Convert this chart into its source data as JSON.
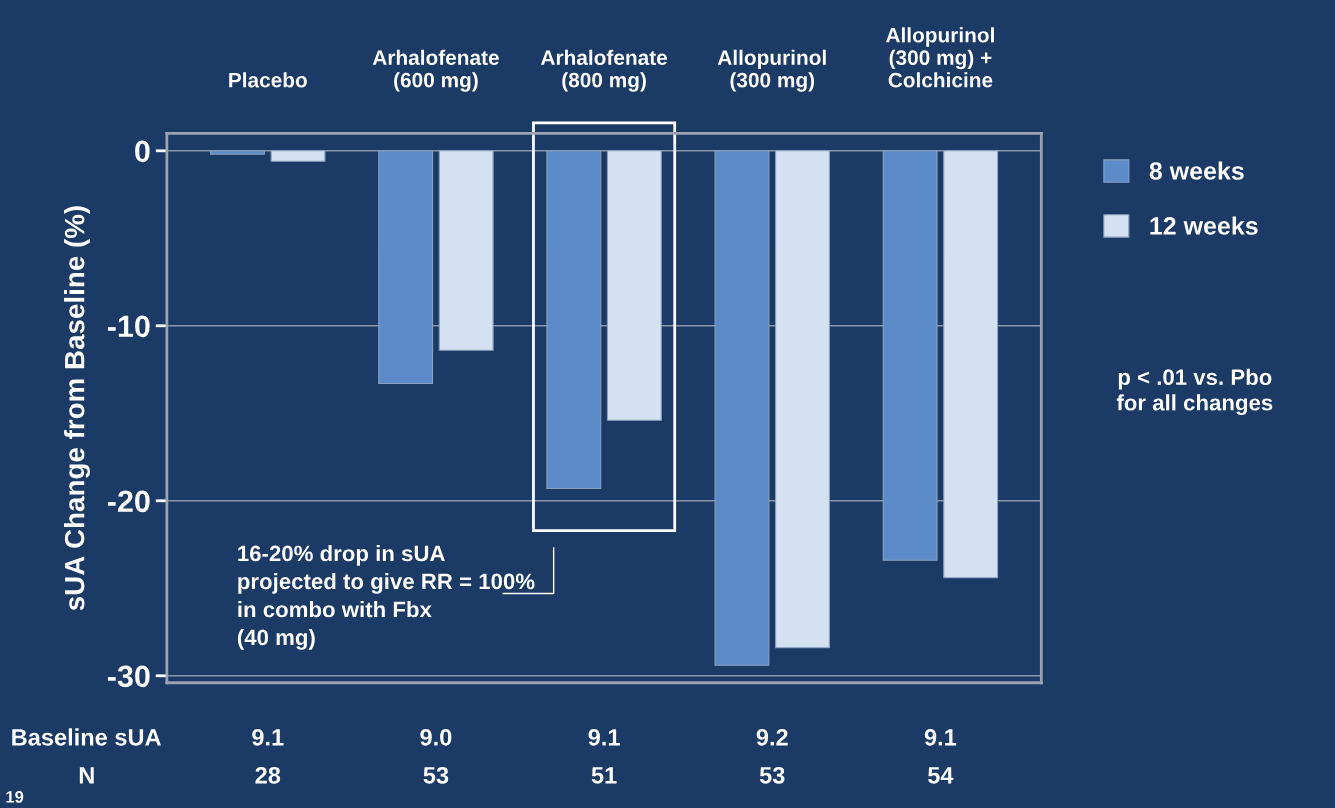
{
  "chart_data": {
    "type": "bar",
    "categories": [
      "Placebo",
      "Arhalofenate\n(600 mg)",
      "Arhalofenate\n(800 mg)",
      "Allopurinol\n(300 mg)",
      "Allopurinol\n(300 mg) +\nColchicine"
    ],
    "ylabel": "sUA Change from Baseline (%)",
    "series": [
      {
        "name": "8 weeks",
        "color": "#5b8bc9",
        "values": [
          -0.2,
          -13.3,
          -19.3,
          -29.4,
          -23.4
        ]
      },
      {
        "name": "12 weeks",
        "color": "#d3e1f2",
        "values": [
          -0.6,
          -11.4,
          -15.4,
          -28.4,
          -24.4
        ]
      }
    ],
    "ylim": [
      -30.4,
      1
    ],
    "yticks": [
      0,
      -10,
      -20,
      -30
    ],
    "grid": "y",
    "legend": "right",
    "annotations": [
      "Baseline sUA",
      "N",
      "9.1",
      "9.0",
      "9.1",
      "9.2",
      "9.1",
      "28",
      "53",
      "51",
      "53",
      "54",
      "16-20% drop in sUA\nprojected to give RR = 100%\nin combo with Fbx\n(40 mg)",
      "p < .01 vs. Pbo\nfor all changes",
      "19"
    ]
  }
}
